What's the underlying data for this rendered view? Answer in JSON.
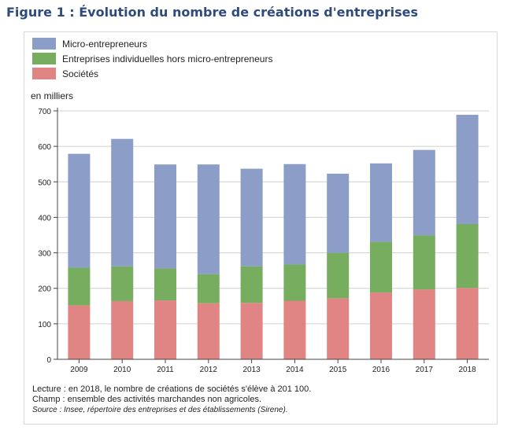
{
  "figure": {
    "title": "Figure 1 : Évolution du nombre de créations d'entreprises",
    "unit_label": "en milliers",
    "notes": {
      "lecture": "Lecture : en 2018, le nombre de créations de sociétés s'élève à 201 100.",
      "champ": "Champ : ensemble des activités marchandes non agricoles.",
      "source": "Source : Insee, répertoire des entreprises et des établissements (Sirene)."
    }
  },
  "chart_data": {
    "type": "bar",
    "stacked": true,
    "categories": [
      "2009",
      "2010",
      "2011",
      "2012",
      "2013",
      "2014",
      "2015",
      "2016",
      "2017",
      "2018"
    ],
    "series": [
      {
        "name": "Sociétés",
        "color": "#e08484",
        "values": [
          152,
          164,
          166,
          158,
          159,
          165,
          172,
          188,
          197,
          201
        ]
      },
      {
        "name": "Entreprises individuelles hors micro-entrepreneurs",
        "color": "#77ad5f",
        "values": [
          106,
          98,
          90,
          82,
          103,
          102,
          128,
          143,
          152,
          180
        ]
      },
      {
        "name": "Micro-entrepreneurs",
        "color": "#8c9dc8",
        "values": [
          321,
          359,
          293,
          309,
          275,
          283,
          223,
          221,
          241,
          308
        ]
      }
    ],
    "legend_order": [
      "Micro-entrepreneurs",
      "Entreprises individuelles hors micro-entrepreneurs",
      "Sociétés"
    ],
    "ylim": [
      0,
      700
    ],
    "yticks": [
      0,
      100,
      200,
      300,
      400,
      500,
      600,
      700
    ],
    "grid": true,
    "legend_position": "top-left"
  }
}
